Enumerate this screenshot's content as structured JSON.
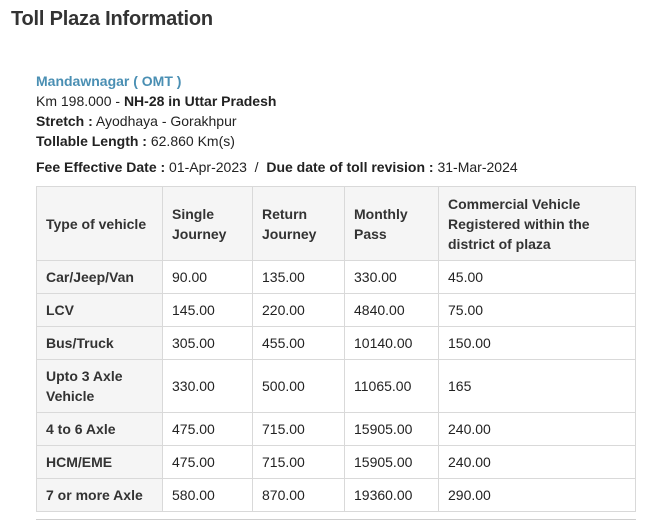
{
  "page_title": "Toll Plaza Information",
  "plaza": {
    "name": "Mandawnagar ( OMT )",
    "km_prefix": "Km 198.000 - ",
    "highway": "NH-28 in Uttar Pradesh",
    "stretch_label": "Stretch :",
    "stretch_value": " Ayodhaya - Gorakhpur",
    "length_label": "Tollable Length :",
    "length_value": " 62.860 Km(s)"
  },
  "fee": {
    "effective_label": "Fee Effective Date :",
    "effective_value": " 01-Apr-2023",
    "separator": "  /  ",
    "revision_label": "Due date of toll revision :",
    "revision_value": " 31-Mar-2024"
  },
  "table": {
    "headers": [
      "Type of vehicle",
      "Single Journey",
      "Return Journey",
      "Monthly Pass",
      "Commercial Vehicle Registered within the district of plaza"
    ],
    "rows": [
      [
        "Car/Jeep/Van",
        "90.00",
        "135.00",
        "330.00",
        "45.00"
      ],
      [
        "LCV",
        "145.00",
        "220.00",
        "4840.00",
        "75.00"
      ],
      [
        "Bus/Truck",
        "305.00",
        "455.00",
        "10140.00",
        "150.00"
      ],
      [
        "Upto 3 Axle Vehicle",
        "330.00",
        "500.00",
        "11065.00",
        "165"
      ],
      [
        "4 to 6 Axle",
        "475.00",
        "715.00",
        "15905.00",
        "240.00"
      ],
      [
        "HCM/EME",
        "475.00",
        "715.00",
        "15905.00",
        "240.00"
      ],
      [
        "7 or more Axle",
        "580.00",
        "870.00",
        "19360.00",
        "290.00"
      ]
    ]
  }
}
